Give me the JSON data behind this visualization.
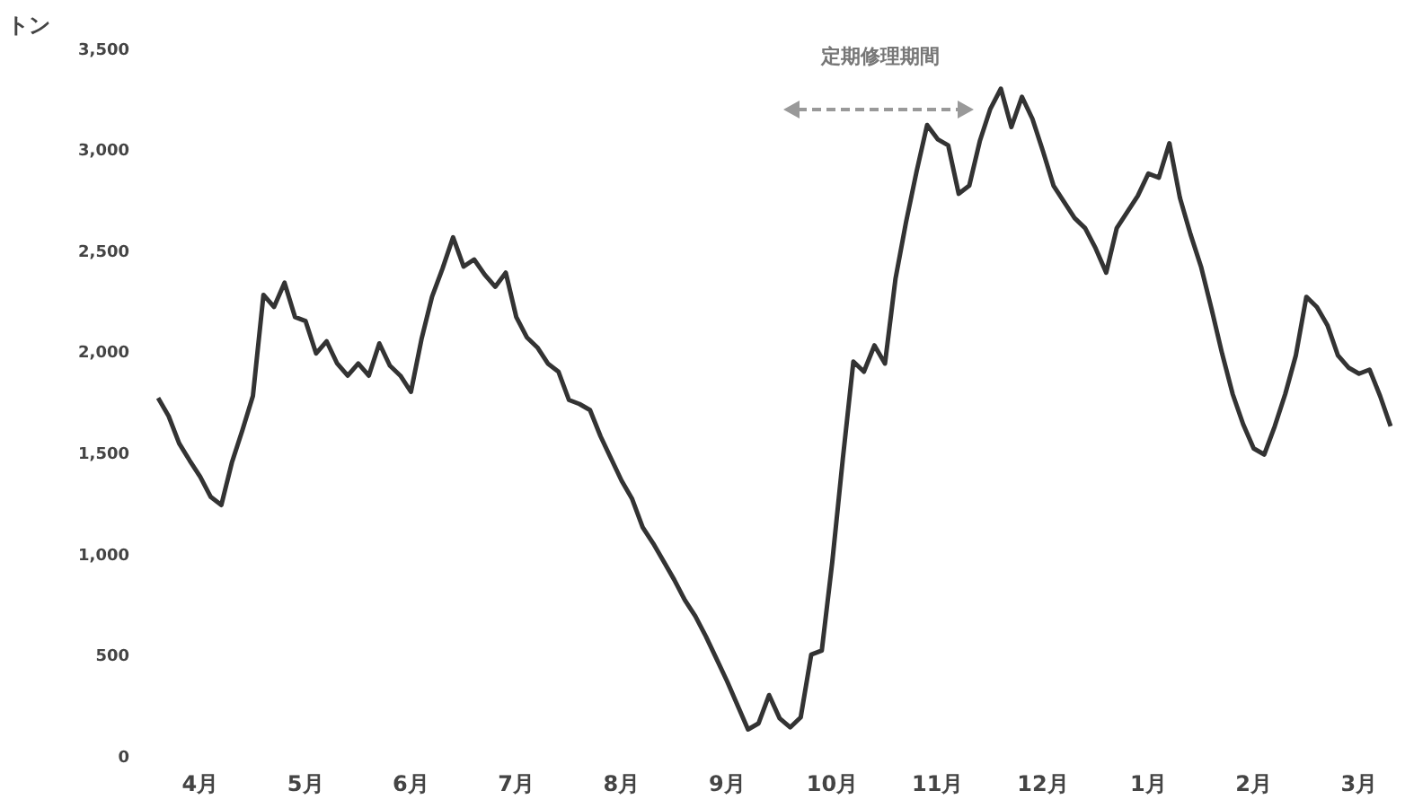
{
  "chart_data": {
    "type": "line",
    "ylabel": "トン",
    "color": "#333333",
    "categories": [
      null,
      null,
      null,
      null,
      "4月",
      null,
      null,
      null,
      null,
      null,
      null,
      null,
      null,
      null,
      "5月",
      null,
      null,
      null,
      null,
      null,
      null,
      null,
      null,
      null,
      "6月",
      null,
      null,
      null,
      null,
      null,
      null,
      null,
      null,
      null,
      "7月",
      null,
      null,
      null,
      null,
      null,
      null,
      null,
      null,
      null,
      "8月",
      null,
      null,
      null,
      null,
      null,
      null,
      null,
      null,
      null,
      "9月",
      null,
      null,
      null,
      null,
      null,
      null,
      null,
      null,
      null,
      "10月",
      null,
      null,
      null,
      null,
      null,
      null,
      null,
      null,
      null,
      "11月",
      null,
      null,
      null,
      null,
      null,
      null,
      null,
      null,
      null,
      "12月",
      null,
      null,
      null,
      null,
      null,
      null,
      null,
      null,
      null,
      "1月",
      null,
      null,
      null,
      null,
      null,
      null,
      null,
      null,
      null,
      "2月",
      null,
      null,
      null,
      null,
      null,
      null,
      null,
      null,
      null,
      "3月",
      null,
      null,
      null
    ],
    "values": [
      1780,
      1690,
      1555,
      1470,
      1390,
      1290,
      1250,
      1460,
      1620,
      1790,
      2290,
      2230,
      2350,
      2180,
      2160,
      2000,
      2060,
      1950,
      1890,
      1950,
      1890,
      2050,
      1940,
      1890,
      1810,
      2070,
      2280,
      2420,
      2575,
      2430,
      2465,
      2390,
      2330,
      2400,
      2180,
      2080,
      2030,
      1950,
      1910,
      1770,
      1750,
      1720,
      1590,
      1480,
      1370,
      1280,
      1140,
      1060,
      970,
      880,
      780,
      700,
      600,
      490,
      380,
      260,
      140,
      170,
      310,
      195,
      150,
      200,
      510,
      530,
      970,
      1480,
      1960,
      1910,
      2040,
      1950,
      2370,
      2650,
      2900,
      3130,
      3060,
      3030,
      2790,
      2830,
      3050,
      3210,
      3310,
      3120,
      3270,
      3160,
      3000,
      2830,
      2750,
      2670,
      2620,
      2520,
      2400,
      2620,
      2700,
      2780,
      2890,
      2870,
      3040,
      2770,
      2590,
      2430,
      2220,
      2000,
      1800,
      1650,
      1530,
      1500,
      1640,
      1800,
      1990,
      2280,
      2230,
      2140,
      1990,
      1930,
      1900,
      1920,
      1790,
      1640
    ],
    "ylim": [
      0,
      3500
    ],
    "yticks": [
      0,
      500,
      {
        "value": 1000,
        "label": "1,000"
      },
      {
        "value": 1500,
        "label": "1,500"
      },
      {
        "value": 2000,
        "label": "2,000"
      },
      {
        "value": 2500,
        "label": "2,500"
      },
      {
        "value": 3000,
        "label": "3,000"
      },
      {
        "value": 3500,
        "label": "3,500"
      }
    ],
    "annotations": [
      "定期修理期間"
    ],
    "grid": false,
    "legend": false,
    "marker": "none",
    "line_style": "solid"
  }
}
